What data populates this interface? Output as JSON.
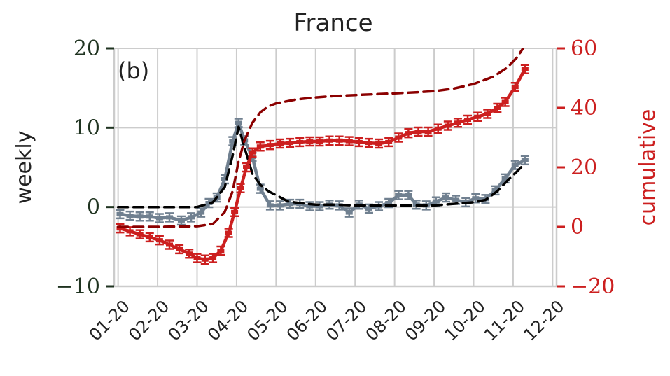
{
  "chart_data": {
    "type": "line",
    "title": "France",
    "panel_label": "(b)",
    "ylabel_left": "weekly",
    "ylabel_right": "cumulative",
    "ylim_left": [
      -10,
      20
    ],
    "ylim_right": [
      -20,
      60
    ],
    "yticks_left": [
      -10,
      0,
      10,
      20
    ],
    "yticks_right": [
      -20,
      0,
      20,
      40,
      60
    ],
    "ytick_labels_left": [
      "−10",
      "0",
      "10",
      "20"
    ],
    "ytick_labels_right": [
      "−20",
      "0",
      "20",
      "40",
      "60"
    ],
    "xlim": [
      -0.1,
      11.1
    ],
    "x_ticks": [
      0,
      1,
      2,
      3,
      4,
      5,
      6,
      7,
      8,
      9,
      10,
      11
    ],
    "x_tick_labels": [
      "01-20",
      "02-20",
      "03-20",
      "04-20",
      "05-20",
      "06-20",
      "07-20",
      "08-20",
      "09-20",
      "10-20",
      "11-20",
      "12-20"
    ],
    "grid": true,
    "colors": {
      "weekly_data": "#708090",
      "weekly_model": "#000000",
      "cumulative_data": "#cc1f1f",
      "cumulative_model": "#8b0000",
      "left_axis": "#1f3320",
      "right_axis": "#cc1f1f",
      "grid": "#cccccc"
    },
    "series": [
      {
        "axis": "left",
        "style": "data",
        "points": [
          [
            0.05,
            -0.9
          ],
          [
            0.3,
            -1.1
          ],
          [
            0.55,
            -1.2
          ],
          [
            0.8,
            -1.2
          ],
          [
            1.05,
            -1.4
          ],
          [
            1.3,
            -1.3
          ],
          [
            1.6,
            -1.7
          ],
          [
            1.85,
            -1.3
          ],
          [
            2.1,
            -0.7
          ],
          [
            2.3,
            0.5
          ],
          [
            2.5,
            1.2
          ],
          [
            2.7,
            3.5
          ],
          [
            2.9,
            8.3
          ],
          [
            3.05,
            10.6
          ],
          [
            3.2,
            8.4
          ],
          [
            3.4,
            6.3
          ],
          [
            3.6,
            2.3
          ],
          [
            3.85,
            0.2
          ],
          [
            4.1,
            0.2
          ],
          [
            4.35,
            0.4
          ],
          [
            4.6,
            0.4
          ],
          [
            4.85,
            0.1
          ],
          [
            5.1,
            0.1
          ],
          [
            5.35,
            0.3
          ],
          [
            5.6,
            0.2
          ],
          [
            5.85,
            -0.7
          ],
          [
            6.1,
            0.3
          ],
          [
            6.35,
            -0.2
          ],
          [
            6.6,
            0.1
          ],
          [
            6.85,
            0.5
          ],
          [
            7.1,
            1.5
          ],
          [
            7.35,
            1.5
          ],
          [
            7.55,
            0.3
          ],
          [
            7.8,
            0.2
          ],
          [
            8.05,
            0.7
          ],
          [
            8.3,
            1.2
          ],
          [
            8.55,
            0.9
          ],
          [
            8.8,
            0.6
          ],
          [
            9.05,
            1.1
          ],
          [
            9.3,
            1.0
          ],
          [
            9.55,
            2.1
          ],
          [
            9.8,
            3.6
          ],
          [
            10.05,
            5.3
          ],
          [
            10.3,
            5.9
          ]
        ]
      },
      {
        "axis": "left",
        "style": "model",
        "points": [
          [
            0,
            0
          ],
          [
            1,
            0
          ],
          [
            2,
            0
          ],
          [
            2.4,
            0.6
          ],
          [
            2.7,
            2.5
          ],
          [
            2.9,
            6.5
          ],
          [
            3.05,
            10.1
          ],
          [
            3.2,
            7.5
          ],
          [
            3.4,
            4.2
          ],
          [
            3.6,
            2.8
          ],
          [
            3.8,
            2.0
          ],
          [
            4.0,
            1.5
          ],
          [
            4.3,
            0.7
          ],
          [
            4.6,
            0.5
          ],
          [
            5.0,
            0.3
          ],
          [
            5.5,
            0.3
          ],
          [
            6.0,
            0.2
          ],
          [
            6.5,
            0.2
          ],
          [
            7.0,
            0.2
          ],
          [
            7.5,
            0.2
          ],
          [
            8.0,
            0.2
          ],
          [
            8.5,
            0.4
          ],
          [
            9.0,
            0.6
          ],
          [
            9.3,
            0.9
          ],
          [
            9.6,
            2.0
          ],
          [
            9.85,
            3.3
          ],
          [
            10.1,
            4.5
          ],
          [
            10.3,
            5.5
          ]
        ]
      },
      {
        "axis": "right",
        "style": "data",
        "points": [
          [
            0.05,
            -0.5
          ],
          [
            0.3,
            -1.5
          ],
          [
            0.55,
            -2.5
          ],
          [
            0.8,
            -3.5
          ],
          [
            1.05,
            -4.5
          ],
          [
            1.3,
            -6.0
          ],
          [
            1.55,
            -7.5
          ],
          [
            1.8,
            -9.0
          ],
          [
            2.0,
            -10.5
          ],
          [
            2.2,
            -11.0
          ],
          [
            2.4,
            -10.5
          ],
          [
            2.6,
            -8.0
          ],
          [
            2.8,
            -2.0
          ],
          [
            2.95,
            5.0
          ],
          [
            3.1,
            13.0
          ],
          [
            3.25,
            20.0
          ],
          [
            3.4,
            25.0
          ],
          [
            3.6,
            27.0
          ],
          [
            3.85,
            27.5
          ],
          [
            4.1,
            28.0
          ],
          [
            4.35,
            28.2
          ],
          [
            4.6,
            28.5
          ],
          [
            4.85,
            28.7
          ],
          [
            5.1,
            28.7
          ],
          [
            5.35,
            29.0
          ],
          [
            5.6,
            29.0
          ],
          [
            5.85,
            28.8
          ],
          [
            6.1,
            28.5
          ],
          [
            6.35,
            28.2
          ],
          [
            6.6,
            28.0
          ],
          [
            6.85,
            28.5
          ],
          [
            7.1,
            30.0
          ],
          [
            7.35,
            31.5
          ],
          [
            7.6,
            32.0
          ],
          [
            7.85,
            32.0
          ],
          [
            8.1,
            33.0
          ],
          [
            8.35,
            34.0
          ],
          [
            8.6,
            35.0
          ],
          [
            8.85,
            36.0
          ],
          [
            9.1,
            37.0
          ],
          [
            9.35,
            38.0
          ],
          [
            9.6,
            40.0
          ],
          [
            9.8,
            42.0
          ],
          [
            10.05,
            47.0
          ],
          [
            10.3,
            53.0
          ]
        ]
      },
      {
        "axis": "right",
        "style": "model",
        "points": [
          [
            0,
            0
          ],
          [
            1,
            0
          ],
          [
            2,
            0.2
          ],
          [
            2.4,
            1.0
          ],
          [
            2.7,
            5.0
          ],
          [
            2.9,
            12.0
          ],
          [
            3.05,
            22.0
          ],
          [
            3.2,
            29.0
          ],
          [
            3.4,
            35.0
          ],
          [
            3.6,
            38.5
          ],
          [
            3.8,
            40.5
          ],
          [
            4.0,
            41.5
          ],
          [
            4.5,
            42.8
          ],
          [
            5.0,
            43.5
          ],
          [
            5.5,
            44.0
          ],
          [
            6.0,
            44.3
          ],
          [
            6.5,
            44.6
          ],
          [
            7.0,
            44.9
          ],
          [
            7.5,
            45.2
          ],
          [
            8.0,
            45.6
          ],
          [
            8.5,
            46.5
          ],
          [
            9.0,
            48.0
          ],
          [
            9.5,
            50.5
          ],
          [
            9.85,
            53.5
          ],
          [
            10.1,
            57.0
          ],
          [
            10.3,
            61.0
          ]
        ]
      }
    ]
  }
}
